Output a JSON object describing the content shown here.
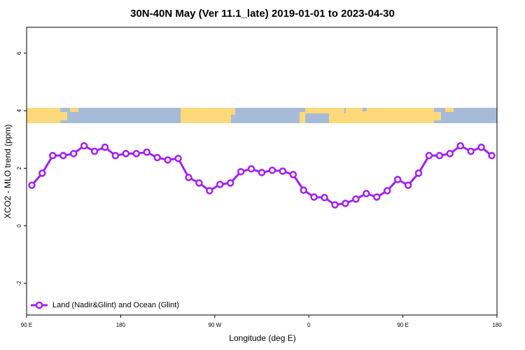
{
  "chart_data": {
    "type": "line",
    "title": "30N-40N May (Ver 11.1_late)   2019-01-01 to 2023-04-30",
    "x_label": "Longitude (deg E)",
    "y_label": "XCO2 - MLO trend (ppm)",
    "xlim": [
      90,
      540
    ],
    "ylim": [
      -3.1,
      6.9
    ],
    "xticks": [
      {
        "value": 90,
        "label": "90 E"
      },
      180,
      {
        "value": 270,
        "label": "90 W"
      },
      {
        "value": 360,
        "label": "0"
      },
      {
        "value": 450,
        "label": "90 E"
      },
      {
        "value": 540,
        "label": "180"
      }
    ],
    "yticks": [
      -2,
      0,
      2,
      4,
      6
    ],
    "x": [
      95,
      105,
      115,
      125,
      135,
      145,
      155,
      165,
      175,
      185,
      195,
      205,
      215,
      225,
      235,
      245,
      255,
      265,
      275,
      285,
      295,
      305,
      315,
      325,
      335,
      345,
      355,
      365,
      375,
      385,
      395,
      405,
      415,
      425,
      435,
      445,
      455,
      465,
      475,
      485,
      495,
      505,
      515,
      525,
      535
    ],
    "series": [
      {
        "name": "Land (Nadir&Glint) and Ocean (Glint)",
        "color": "#a020f0",
        "values": [
          1.41,
          1.83,
          2.44,
          2.44,
          2.51,
          2.78,
          2.59,
          2.73,
          2.44,
          2.51,
          2.51,
          2.56,
          2.37,
          2.29,
          2.34,
          1.68,
          1.49,
          1.22,
          1.44,
          1.49,
          1.88,
          1.98,
          1.85,
          1.93,
          1.9,
          1.78,
          1.24,
          1.0,
          0.98,
          0.73,
          0.78,
          0.93,
          1.12,
          1.0,
          1.22,
          1.61,
          1.41,
          1.83,
          2.44,
          2.44,
          2.51,
          2.78,
          2.59,
          2.73,
          2.44
        ]
      }
    ],
    "legend": "bottom-left"
  }
}
